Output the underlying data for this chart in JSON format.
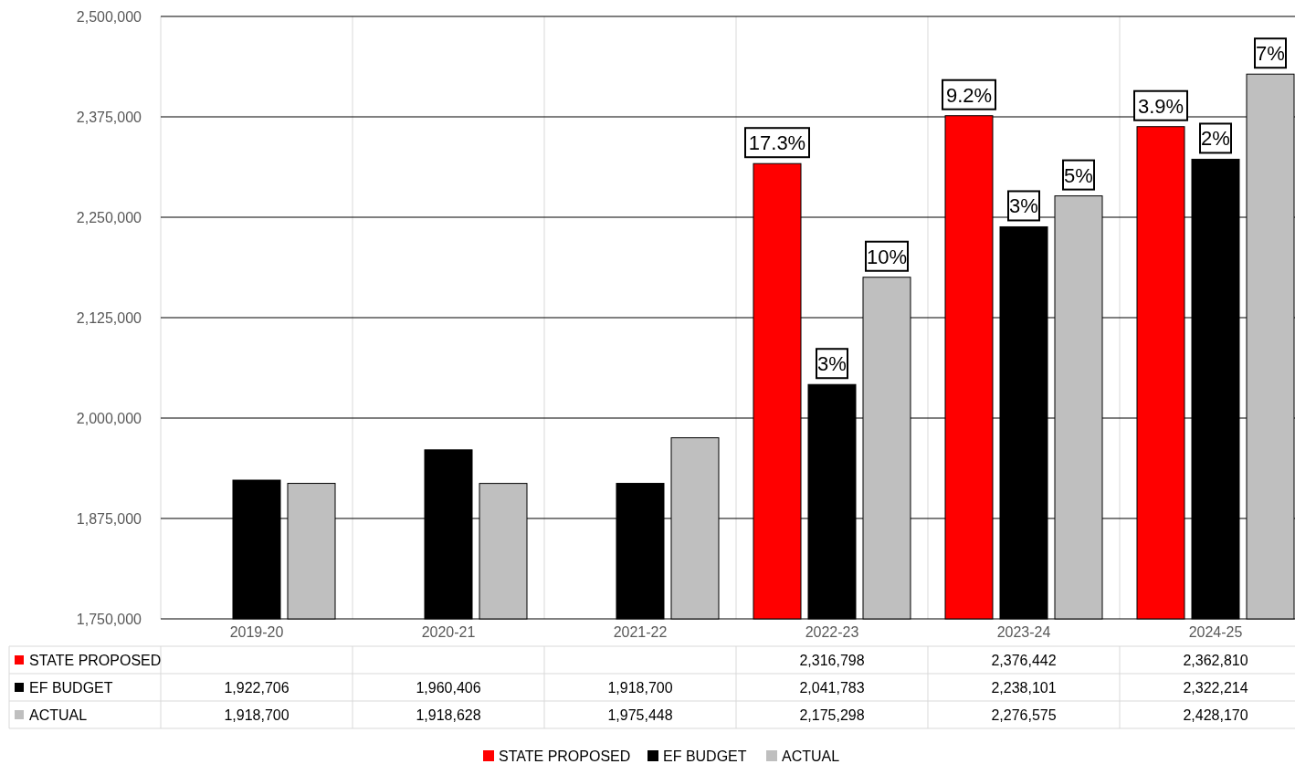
{
  "chart_data": {
    "type": "bar",
    "categories": [
      "2019-20",
      "2020-21",
      "2021-22",
      "2022-23",
      "2023-24",
      "2024-25"
    ],
    "series": [
      {
        "name": "STATE PROPOSED",
        "color": "#ff0000",
        "values": [
          null,
          null,
          null,
          2316798,
          2376442,
          2362810
        ],
        "value_labels": [
          null,
          null,
          null,
          "2,316,798",
          "2,376,442",
          "2,362,810"
        ]
      },
      {
        "name": "EF BUDGET",
        "color": "#000000",
        "values": [
          1922706,
          1960406,
          1918700,
          2041783,
          2238101,
          2322214
        ],
        "value_labels": [
          "1,922,706",
          "1,960,406",
          "1,918,700",
          "2,041,783",
          "2,238,101",
          "2,322,214"
        ]
      },
      {
        "name": "ACTUAL",
        "color": "#bfbfbf",
        "values": [
          1918700,
          1918628,
          1975448,
          2175298,
          2276575,
          2428170
        ],
        "value_labels": [
          "1,918,700",
          "1,918,628",
          "1,975,448",
          "2,175,298",
          "2,276,575",
          "2,428,170"
        ]
      }
    ],
    "annotations": [
      "17.3%",
      "9.2%",
      "3.9%",
      "3%",
      "3%",
      "2%",
      "10%",
      "5%",
      "7%"
    ],
    "data_labels": true,
    "ylim": [
      1750000,
      2500000
    ],
    "yticks": [
      {
        "value": 1750000,
        "label": "1,750,000"
      },
      {
        "value": 1875000,
        "label": "1,875,000"
      },
      {
        "value": 2000000,
        "label": "2,000,000"
      },
      {
        "value": 2125000,
        "label": "2,125,000"
      },
      {
        "value": 2250000,
        "label": "2,250,000"
      },
      {
        "value": 2375000,
        "label": "2,375,000"
      },
      {
        "value": 2500000,
        "label": "2,500,000"
      }
    ],
    "grid": "y",
    "legend": "bottom"
  }
}
